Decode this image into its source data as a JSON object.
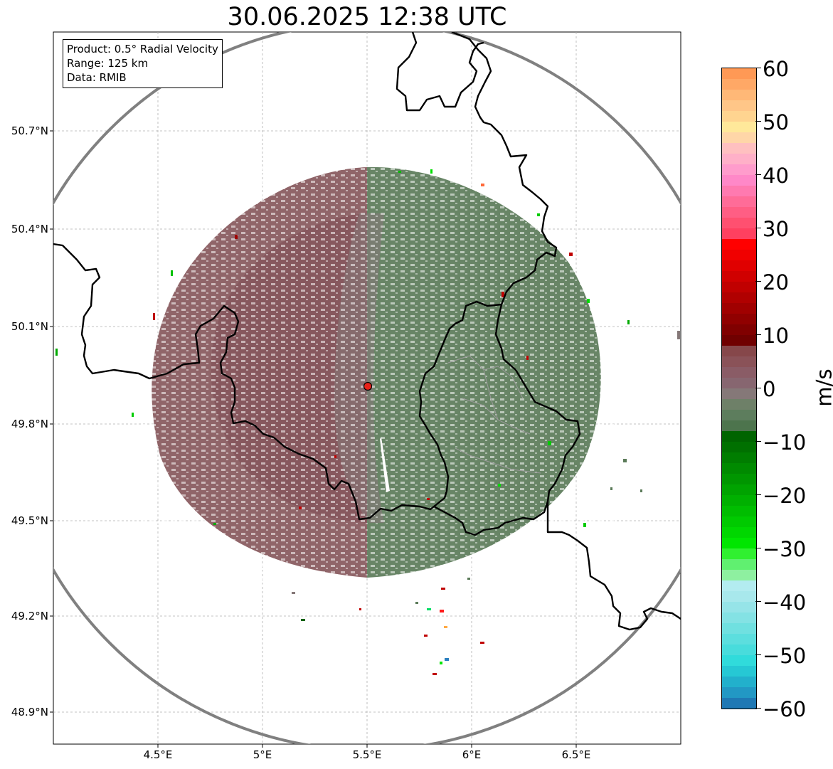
{
  "title": "30.06.2025 12:38 UTC",
  "info_box": {
    "product": "Product: 0.5° Radial Velocity",
    "range": "Range: 125 km",
    "data": "Data: RMIB"
  },
  "lat_ticks": [
    "50.7°N",
    "50.4°N",
    "50.1°N",
    "49.8°N",
    "49.5°N",
    "49.2°N",
    "48.9°N"
  ],
  "lon_ticks": [
    "4.5°E",
    "5°E",
    "5.5°E",
    "6°E",
    "6.5°E"
  ],
  "colorbar": {
    "unit": "m/s",
    "tick_labels": [
      "60",
      "50",
      "40",
      "30",
      "20",
      "10",
      "0",
      "−10",
      "−20",
      "−30",
      "−40",
      "−50",
      "−60"
    ],
    "min": -60,
    "max": 60,
    "colors": {
      "strong_inbound": "#1f78b4",
      "cyan": "#30dbdb",
      "light_cyan": "#b3ecf0",
      "light_green": "#8ef0a0",
      "green": "#00e600",
      "dark_green": "#006400",
      "near_zero_green": "#5d7d5d",
      "near_zero_grey": "#857878",
      "near_zero_maroon": "#86474a",
      "dark_red": "#800000",
      "red": "#ff0000",
      "pink": "#ff88c8",
      "light_yellow": "#ffe89a",
      "orange": "#ff9955"
    }
  },
  "map": {
    "radar_site_color": "#e8221a",
    "receding_color": "#87585c",
    "approaching_color": "#5b7b59",
    "range_ring_color": "#808080",
    "border_color": "#000000",
    "grid_color": "#b0b0b0"
  }
}
